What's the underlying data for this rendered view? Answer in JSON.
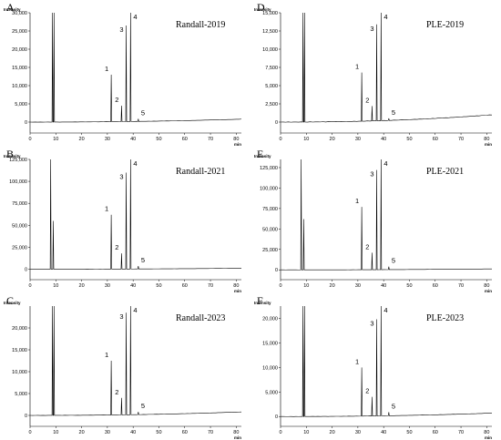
{
  "chart_data": [
    {
      "type": "line",
      "panel": "A",
      "title": "Randall-2019",
      "ylabel": "Intensity",
      "xlabel": "min",
      "xlim": [
        0,
        82
      ],
      "ylim": [
        -3000,
        30000
      ],
      "xticks": [
        0,
        10,
        20,
        30,
        40,
        50,
        60,
        70,
        80
      ],
      "yticks": [
        0,
        5000,
        10000,
        15000,
        20000,
        25000,
        30000
      ],
      "ytick_labels": [
        "0",
        "5,000",
        "10,000",
        "15,000",
        "20,000",
        "25,000",
        "30,000"
      ],
      "solvent_peaks": [
        {
          "x": 8.7,
          "y": 30000
        },
        {
          "x": 9.3,
          "y": 30000
        }
      ],
      "peaks": [
        {
          "label": "1",
          "x": 31.5,
          "y": 13000
        },
        {
          "label": "2",
          "x": 35.5,
          "y": 4500
        },
        {
          "label": "3",
          "x": 37.3,
          "y": 26500
        },
        {
          "label": "4",
          "x": 39.0,
          "y": 30000
        },
        {
          "label": "5",
          "x": 42.0,
          "y": 900
        }
      ],
      "baseline_end": 800
    },
    {
      "type": "line",
      "panel": "B",
      "title": "Randall-2021",
      "ylabel": "Intensity",
      "xlabel": "min",
      "xlim": [
        0,
        82
      ],
      "ylim": [
        -12000,
        125000
      ],
      "xticks": [
        0,
        10,
        20,
        30,
        40,
        50,
        60,
        70,
        80
      ],
      "yticks": [
        0,
        25000,
        50000,
        75000,
        100000,
        125000
      ],
      "ytick_labels": [
        "0",
        "25,000",
        "50,000",
        "75,000",
        "100,000",
        "125,000"
      ],
      "solvent_peaks": [
        {
          "x": 8.0,
          "y": 125000
        },
        {
          "x": 9.0,
          "y": 55000
        }
      ],
      "peaks": [
        {
          "label": "1",
          "x": 31.5,
          "y": 62000
        },
        {
          "label": "2",
          "x": 35.5,
          "y": 18000
        },
        {
          "label": "3",
          "x": 37.3,
          "y": 110000
        },
        {
          "label": "4",
          "x": 39.0,
          "y": 125000
        },
        {
          "label": "5",
          "x": 42.0,
          "y": 3500
        }
      ],
      "baseline_end": 1000
    },
    {
      "type": "line",
      "panel": "C",
      "title": "Randall-2023",
      "ylabel": "Intensity",
      "xlabel": "min",
      "xlim": [
        0,
        82
      ],
      "ylim": [
        -2500,
        25000
      ],
      "xticks": [
        0,
        10,
        20,
        30,
        40,
        50,
        60,
        70,
        80
      ],
      "yticks": [
        0,
        5000,
        10000,
        15000,
        20000
      ],
      "ytick_labels": [
        "0",
        "5,000",
        "10,000",
        "15,000",
        "20,000"
      ],
      "solvent_peaks": [
        {
          "x": 8.7,
          "y": 25000
        },
        {
          "x": 9.3,
          "y": 25000
        }
      ],
      "peaks": [
        {
          "label": "1",
          "x": 31.5,
          "y": 12500
        },
        {
          "label": "2",
          "x": 35.5,
          "y": 4000
        },
        {
          "label": "3",
          "x": 37.3,
          "y": 23500
        },
        {
          "label": "4",
          "x": 39.0,
          "y": 25000
        },
        {
          "label": "5",
          "x": 42.0,
          "y": 800
        }
      ],
      "baseline_end": 800
    },
    {
      "type": "line",
      "panel": "D",
      "title": "PLE-2019",
      "ylabel": "Intensity",
      "xlabel": "min",
      "xlim": [
        0,
        82
      ],
      "ylim": [
        -1500,
        15000
      ],
      "xticks": [
        0,
        10,
        20,
        30,
        40,
        50,
        60,
        70,
        80
      ],
      "yticks": [
        0,
        2500,
        5000,
        7500,
        10000,
        12500,
        15000
      ],
      "ytick_labels": [
        "0",
        "2,500",
        "5,000",
        "7,500",
        "10,000",
        "12,500",
        "15,000"
      ],
      "solvent_peaks": [
        {
          "x": 8.7,
          "y": 15000
        },
        {
          "x": 9.3,
          "y": 15000
        }
      ],
      "peaks": [
        {
          "label": "1",
          "x": 31.5,
          "y": 6800
        },
        {
          "label": "2",
          "x": 35.5,
          "y": 2200
        },
        {
          "label": "3",
          "x": 37.3,
          "y": 13400
        },
        {
          "label": "4",
          "x": 39.0,
          "y": 15000
        },
        {
          "label": "5",
          "x": 42.0,
          "y": 500
        }
      ],
      "baseline_end": 1000
    },
    {
      "type": "line",
      "panel": "E",
      "title": "PLE-2021",
      "ylabel": "Intensity",
      "xlabel": "min",
      "xlim": [
        0,
        82
      ],
      "ylim": [
        -12000,
        135000
      ],
      "xticks": [
        0,
        10,
        20,
        30,
        40,
        50,
        60,
        70,
        80
      ],
      "yticks": [
        0,
        25000,
        50000,
        75000,
        100000,
        125000
      ],
      "ytick_labels": [
        "0",
        "25,000",
        "50,000",
        "75,000",
        "100,000",
        "125,000"
      ],
      "solvent_peaks": [
        {
          "x": 8.0,
          "y": 135000
        },
        {
          "x": 9.0,
          "y": 62000
        }
      ],
      "peaks": [
        {
          "label": "1",
          "x": 31.5,
          "y": 77000
        },
        {
          "label": "2",
          "x": 35.5,
          "y": 21000
        },
        {
          "label": "3",
          "x": 37.3,
          "y": 122000
        },
        {
          "label": "4",
          "x": 39.0,
          "y": 135000
        },
        {
          "label": "5",
          "x": 42.0,
          "y": 4000
        }
      ],
      "baseline_end": 1200
    },
    {
      "type": "line",
      "panel": "F",
      "title": "PLE-2023",
      "ylabel": "Intensity",
      "xlabel": "min",
      "xlim": [
        0,
        82
      ],
      "ylim": [
        -2000,
        22500
      ],
      "xticks": [
        0,
        10,
        20,
        30,
        40,
        50,
        60,
        70,
        80
      ],
      "yticks": [
        0,
        5000,
        10000,
        15000,
        20000
      ],
      "ytick_labels": [
        "0",
        "5,000",
        "10,000",
        "15,000",
        "20,000"
      ],
      "solvent_peaks": [
        {
          "x": 8.7,
          "y": 22500
        },
        {
          "x": 9.3,
          "y": 22500
        }
      ],
      "peaks": [
        {
          "label": "1",
          "x": 31.5,
          "y": 10000
        },
        {
          "label": "2",
          "x": 35.5,
          "y": 4000
        },
        {
          "label": "3",
          "x": 37.3,
          "y": 19800
        },
        {
          "label": "4",
          "x": 39.0,
          "y": 22500
        },
        {
          "label": "5",
          "x": 42.0,
          "y": 900
        }
      ],
      "baseline_end": 700
    }
  ]
}
